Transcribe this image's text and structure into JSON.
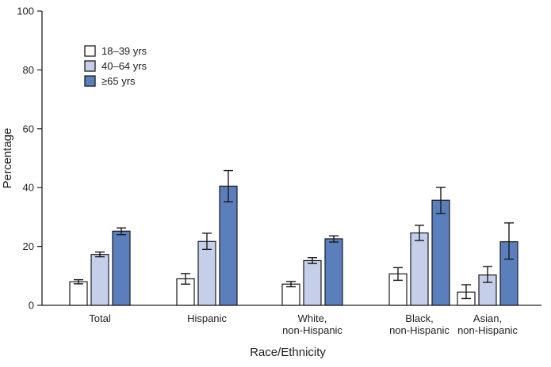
{
  "chart_data": {
    "type": "bar",
    "title": "",
    "xlabel": "Race/Ethnicity",
    "ylabel": "Percentage",
    "ylim": [
      0,
      100
    ],
    "yticks": [
      0,
      20,
      40,
      60,
      80,
      100
    ],
    "grid": false,
    "legend_position": "top-left",
    "categories": [
      [
        "Total"
      ],
      [
        "Hispanic"
      ],
      [
        "White,",
        "non-Hispanic"
      ],
      [
        "Black,",
        "non-Hispanic"
      ],
      [
        "Asian,",
        "non-Hispanic"
      ]
    ],
    "series": [
      {
        "name": "18–39 yrs",
        "color": "#ffffff",
        "values": [
          8,
          9,
          7.2,
          10.7,
          4.5
        ],
        "ci_low": [
          7.3,
          7.2,
          6.3,
          8.5,
          2.3
        ],
        "ci_high": [
          8.7,
          10.8,
          8.1,
          12.8,
          7.0
        ]
      },
      {
        "name": "40–64 yrs",
        "color": "#c5cfe9",
        "values": [
          17.3,
          21.7,
          15.2,
          24.6,
          10.3
        ],
        "ci_low": [
          16.5,
          19.0,
          14.2,
          22.0,
          7.8
        ],
        "ci_high": [
          18.1,
          24.5,
          16.2,
          27.2,
          13.2
        ]
      },
      {
        "name": "≥65 yrs",
        "color": "#5b7fbd",
        "values": [
          25.2,
          40.5,
          22.6,
          35.7,
          21.6
        ],
        "ci_low": [
          24.0,
          35.2,
          21.5,
          31.2,
          15.7
        ],
        "ci_high": [
          26.3,
          45.8,
          23.6,
          40.1,
          28.0
        ]
      }
    ]
  }
}
